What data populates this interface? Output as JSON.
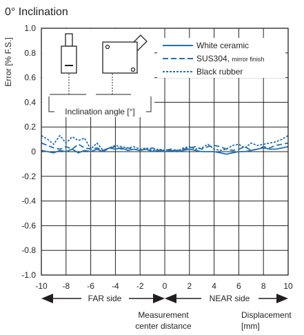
{
  "chart_data": {
    "type": "line",
    "title": "0° Inclination",
    "ylabel": "Error [% F.S.]",
    "xlim": [
      -10,
      10
    ],
    "ylim": [
      -1.0,
      1.0
    ],
    "xticks": [
      -10,
      -8,
      -6,
      -4,
      -2,
      0,
      2,
      4,
      6,
      8,
      10
    ],
    "yticks": [
      -1.0,
      -0.8,
      -0.6,
      -0.4,
      -0.2,
      0,
      0.2,
      0.4,
      0.6,
      0.8,
      1.0
    ],
    "ytick_labels": [
      "-1.0",
      "-0.8",
      "-0.6",
      "-0.4",
      "-0.2",
      "0",
      "0.2",
      "0.4",
      "0.6",
      "0.8",
      "1.0"
    ],
    "grid": true,
    "legend_position": "top-right",
    "x": [
      -10,
      -9.5,
      -9,
      -8.5,
      -8,
      -7.5,
      -7,
      -6.5,
      -6,
      -5.5,
      -5,
      -4.5,
      -4,
      -3.5,
      -3,
      -2.5,
      -2,
      -1.5,
      -1,
      -0.5,
      0,
      0.5,
      1,
      1.5,
      2,
      2.5,
      3,
      3.5,
      4,
      4.5,
      5,
      5.5,
      6,
      6.5,
      7,
      7.5,
      8,
      8.5,
      9,
      9.5,
      10
    ],
    "series": [
      {
        "name": "White ceramic",
        "style": "solid",
        "values": [
          0.01,
          0.0,
          -0.01,
          0.01,
          0.0,
          0.02,
          -0.01,
          0.01,
          0.0,
          0.02,
          0.0,
          0.03,
          0.02,
          0.03,
          0.01,
          0.02,
          0.01,
          0.02,
          0.0,
          0.01,
          0.0,
          0.01,
          0.0,
          0.01,
          0.02,
          0.01,
          0.0,
          0.0,
          0.0,
          -0.01,
          -0.02,
          -0.01,
          0.0,
          0.0,
          0.01,
          0.02,
          0.03,
          0.02,
          0.02,
          0.03,
          0.04
        ]
      },
      {
        "name": "SUS304,",
        "name_suffix": "mirror finish",
        "style": "dashed",
        "values": [
          0.07,
          0.05,
          0.03,
          0.02,
          0.04,
          0.02,
          0.06,
          0.03,
          0.02,
          0.03,
          0.01,
          0.03,
          0.04,
          0.02,
          0.03,
          0.02,
          0.01,
          0.02,
          0.03,
          0.01,
          0.01,
          0.02,
          0.01,
          0.02,
          0.03,
          0.04,
          0.02,
          0.04,
          0.05,
          0.04,
          0.02,
          0.01,
          0.02,
          0.04,
          0.01,
          0.02,
          0.04,
          0.03,
          0.05,
          0.06,
          0.07
        ]
      },
      {
        "name": "Black rubber",
        "style": "dotted",
        "values": [
          0.13,
          0.1,
          0.06,
          0.13,
          0.07,
          0.12,
          0.09,
          0.11,
          0.02,
          0.07,
          0.01,
          0.03,
          0.05,
          0.04,
          0.03,
          0.04,
          0.02,
          0.03,
          0.01,
          0.02,
          0.01,
          0.02,
          0.0,
          0.03,
          0.04,
          0.02,
          0.03,
          0.06,
          0.02,
          0.01,
          0.02,
          0.05,
          0.06,
          0.03,
          0.07,
          0.05,
          0.06,
          0.07,
          0.08,
          0.1,
          0.13
        ]
      }
    ],
    "inset_label": "Inclination angle [°]",
    "far_side_label": "FAR side",
    "near_side_label": "NEAR side",
    "center_label_line1": "Measurement",
    "center_label_line2": "center distance",
    "xlabel_line1": "Displacement",
    "xlabel_line2": "[mm]"
  },
  "colors": {
    "series": "#1f6fb5",
    "axis": "#231f20",
    "grid": "#231f20"
  }
}
